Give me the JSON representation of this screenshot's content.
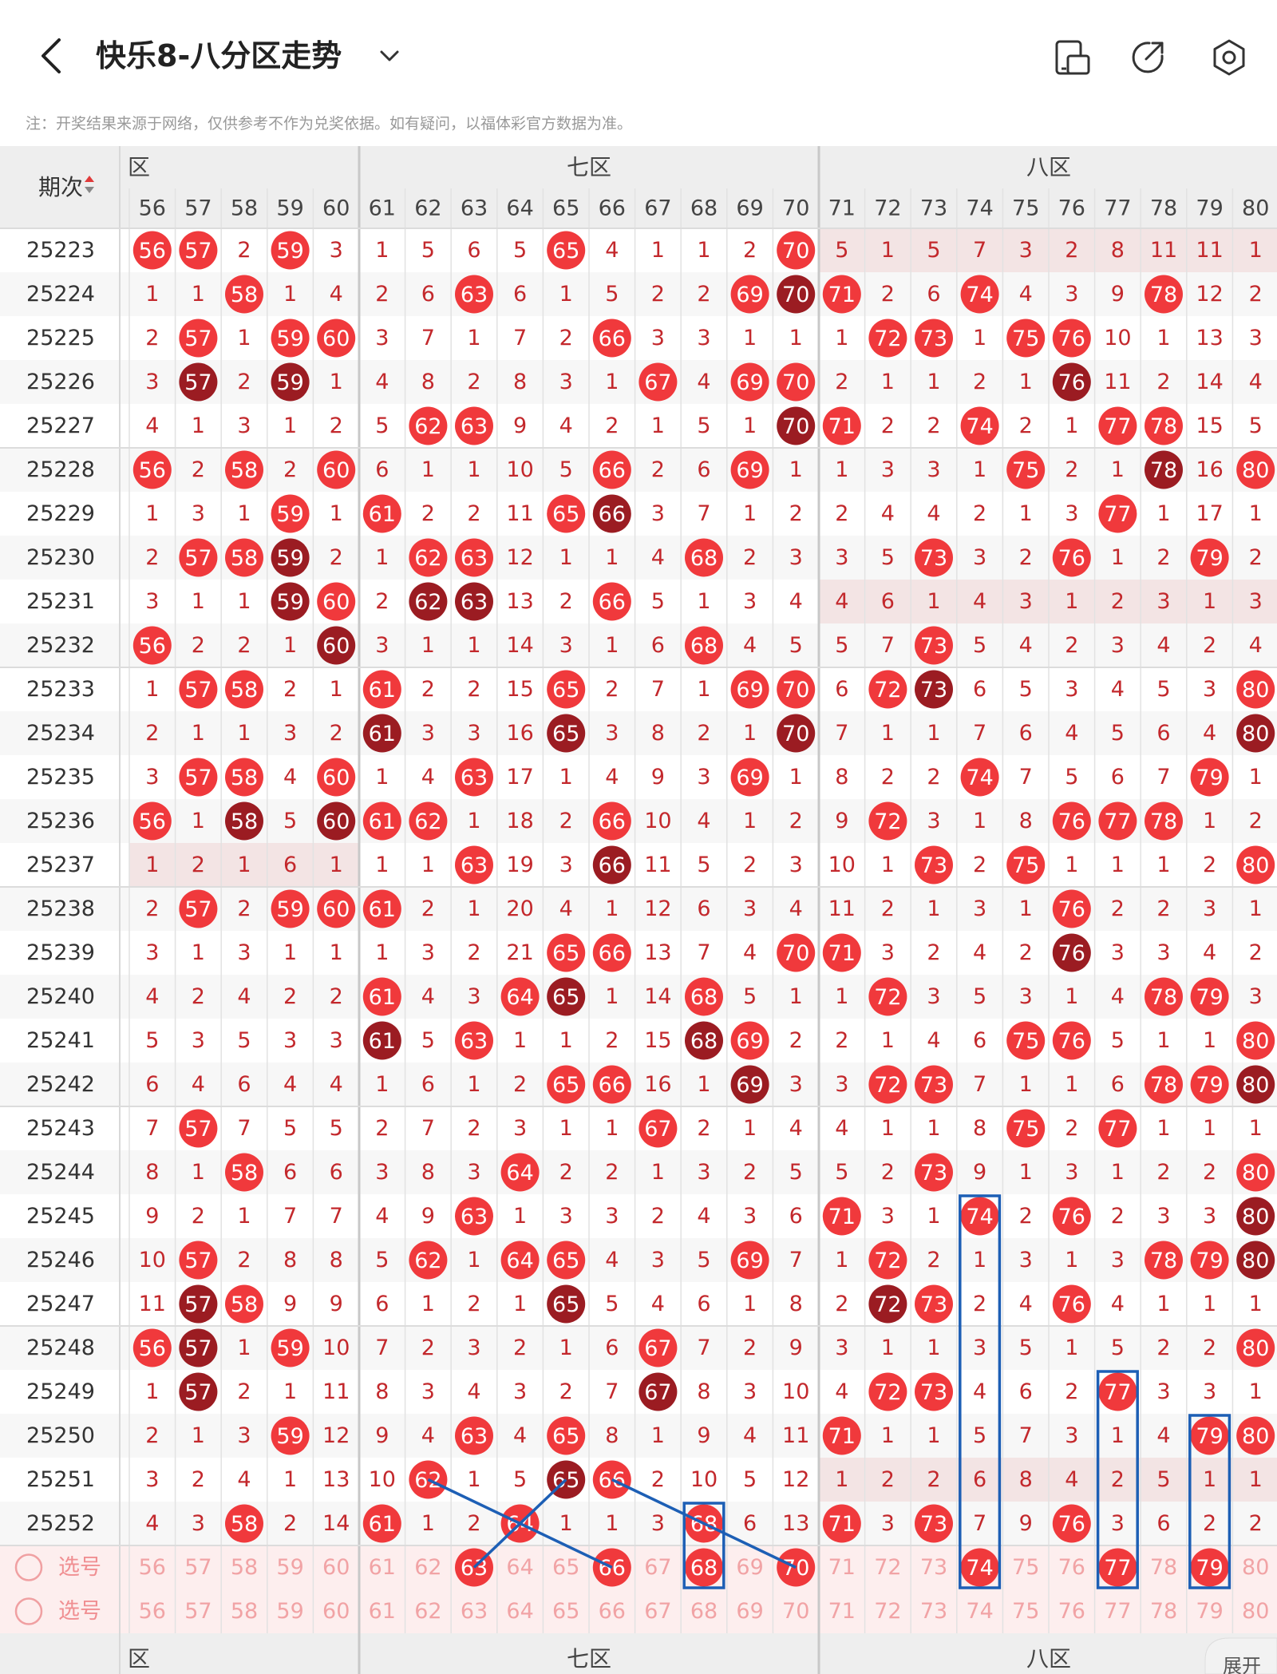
{
  "header": {
    "title": "快乐8-八分区走势",
    "back_icon": "back-arrow-icon",
    "dropdown_icon": "chevron-down-icon",
    "actions": [
      {
        "name": "layout-switch-icon"
      },
      {
        "name": "share-icon"
      },
      {
        "name": "settings-gear-icon"
      }
    ]
  },
  "notice": "注：开奖结果来源于网络，仅供参考不作为兑奖依据。如有疑问，以福体彩官方数据为准。",
  "table": {
    "issue_header": "期次",
    "zones": [
      {
        "label": "六区",
        "visible_label": "区"
      },
      {
        "label": "七区"
      },
      {
        "label": "八区"
      }
    ],
    "columns": [
      56,
      57,
      58,
      59,
      60,
      61,
      62,
      63,
      64,
      65,
      66,
      67,
      68,
      69,
      70,
      71,
      72,
      73,
      74,
      75,
      76,
      77,
      78,
      79,
      80
    ],
    "rows": [
      {
        "issue": "25223",
        "v": [
          "56",
          "57",
          2,
          "59",
          3,
          1,
          5,
          6,
          5,
          "65",
          4,
          1,
          1,
          2,
          "70",
          5,
          1,
          5,
          7,
          3,
          2,
          8,
          11,
          11,
          1
        ]
      },
      {
        "issue": "25224",
        "v": [
          1,
          1,
          "58",
          1,
          4,
          2,
          6,
          "63",
          6,
          1,
          5,
          2,
          2,
          "69",
          "70",
          "71",
          2,
          6,
          "74",
          4,
          3,
          9,
          "78",
          12,
          2
        ]
      },
      {
        "issue": "25225",
        "v": [
          2,
          "57",
          1,
          "59",
          "60",
          3,
          7,
          1,
          7,
          2,
          "66",
          3,
          3,
          1,
          1,
          1,
          "72",
          "73",
          1,
          "75",
          "76",
          10,
          1,
          13,
          3
        ]
      },
      {
        "issue": "25226",
        "v": [
          3,
          "57",
          2,
          "59",
          1,
          4,
          8,
          2,
          8,
          3,
          1,
          "67",
          4,
          "69",
          "70",
          2,
          1,
          1,
          2,
          1,
          "76",
          11,
          2,
          14,
          4
        ]
      },
      {
        "issue": "25227",
        "v": [
          4,
          1,
          3,
          1,
          2,
          5,
          "62",
          "63",
          9,
          4,
          2,
          1,
          5,
          1,
          "70",
          "71",
          2,
          2,
          "74",
          2,
          1,
          "77",
          "78",
          15,
          5
        ]
      },
      {
        "issue": "25228",
        "v": [
          "56",
          2,
          "58",
          2,
          "60",
          6,
          1,
          1,
          10,
          5,
          "66",
          2,
          6,
          "69",
          1,
          1,
          3,
          3,
          1,
          "75",
          2,
          1,
          "78",
          16,
          "80"
        ]
      },
      {
        "issue": "25229",
        "v": [
          1,
          3,
          1,
          "59",
          1,
          "61",
          2,
          2,
          11,
          "65",
          "66",
          3,
          7,
          1,
          2,
          2,
          4,
          4,
          2,
          1,
          3,
          "77",
          1,
          17,
          1
        ]
      },
      {
        "issue": "25230",
        "v": [
          2,
          "57",
          "58",
          "59",
          2,
          1,
          "62",
          "63",
          12,
          1,
          1,
          4,
          "68",
          2,
          3,
          3,
          5,
          "73",
          3,
          2,
          "76",
          1,
          2,
          "79",
          2
        ]
      },
      {
        "issue": "25231",
        "v": [
          3,
          1,
          1,
          "59",
          "60",
          2,
          "62",
          "63",
          13,
          2,
          "66",
          5,
          1,
          3,
          4,
          4,
          6,
          1,
          4,
          3,
          1,
          2,
          3,
          1,
          3
        ]
      },
      {
        "issue": "25232",
        "v": [
          "56",
          2,
          2,
          1,
          "60",
          3,
          1,
          1,
          14,
          3,
          1,
          6,
          "68",
          4,
          5,
          5,
          7,
          "73",
          5,
          4,
          2,
          3,
          4,
          2,
          4
        ]
      },
      {
        "issue": "25233",
        "v": [
          1,
          "57",
          "58",
          2,
          1,
          "61",
          2,
          2,
          15,
          "65",
          2,
          7,
          1,
          "69",
          "70",
          6,
          "72",
          "73",
          6,
          5,
          3,
          4,
          5,
          3,
          "80"
        ]
      },
      {
        "issue": "25234",
        "v": [
          2,
          1,
          1,
          3,
          2,
          "61",
          3,
          3,
          16,
          "65",
          3,
          8,
          2,
          1,
          "70",
          7,
          1,
          1,
          7,
          6,
          4,
          5,
          6,
          4,
          "80"
        ]
      },
      {
        "issue": "25235",
        "v": [
          3,
          "57",
          "58",
          4,
          "60",
          1,
          4,
          "63",
          17,
          1,
          4,
          9,
          3,
          "69",
          1,
          8,
          2,
          2,
          "74",
          7,
          5,
          6,
          7,
          "79",
          1
        ]
      },
      {
        "issue": "25236",
        "v": [
          "56",
          1,
          "58",
          5,
          "60",
          "61",
          "62",
          1,
          18,
          2,
          "66",
          10,
          4,
          1,
          2,
          9,
          "72",
          3,
          1,
          8,
          "76",
          "77",
          "78",
          1,
          2
        ]
      },
      {
        "issue": "25237",
        "v": [
          1,
          2,
          1,
          6,
          1,
          1,
          1,
          "63",
          19,
          3,
          "66",
          11,
          5,
          2,
          3,
          10,
          1,
          "73",
          2,
          "75",
          1,
          1,
          1,
          2,
          "80"
        ]
      },
      {
        "issue": "25238",
        "v": [
          2,
          "57",
          2,
          "59",
          "60",
          "61",
          2,
          1,
          20,
          4,
          1,
          12,
          6,
          3,
          4,
          11,
          2,
          1,
          3,
          1,
          "76",
          2,
          2,
          3,
          1
        ]
      },
      {
        "issue": "25239",
        "v": [
          3,
          1,
          3,
          1,
          1,
          1,
          3,
          2,
          21,
          "65",
          "66",
          13,
          7,
          4,
          "70",
          "71",
          3,
          2,
          4,
          2,
          "76",
          3,
          3,
          4,
          2
        ]
      },
      {
        "issue": "25240",
        "v": [
          4,
          2,
          4,
          2,
          2,
          "61",
          4,
          3,
          "64",
          "65",
          1,
          14,
          "68",
          5,
          1,
          1,
          "72",
          3,
          5,
          3,
          1,
          4,
          "78",
          "79",
          3
        ]
      },
      {
        "issue": "25241",
        "v": [
          5,
          3,
          5,
          3,
          3,
          "61",
          5,
          "63",
          1,
          1,
          2,
          15,
          "68",
          "69",
          2,
          2,
          1,
          4,
          6,
          "75",
          "76",
          5,
          1,
          1,
          "80"
        ]
      },
      {
        "issue": "25242",
        "v": [
          6,
          4,
          6,
          4,
          4,
          1,
          6,
          1,
          2,
          "65",
          "66",
          16,
          1,
          "69",
          3,
          3,
          "72",
          "73",
          7,
          1,
          1,
          6,
          "78",
          "79",
          "80"
        ]
      },
      {
        "issue": "25243",
        "v": [
          7,
          "57",
          7,
          5,
          5,
          2,
          7,
          2,
          3,
          1,
          1,
          "67",
          2,
          1,
          4,
          4,
          1,
          1,
          8,
          "75",
          2,
          "77",
          1,
          1,
          1
        ]
      },
      {
        "issue": "25244",
        "v": [
          8,
          1,
          "58",
          6,
          6,
          3,
          8,
          3,
          "64",
          2,
          2,
          1,
          3,
          2,
          5,
          5,
          2,
          "73",
          9,
          1,
          3,
          1,
          2,
          2,
          "80"
        ]
      },
      {
        "issue": "25245",
        "v": [
          9,
          2,
          1,
          7,
          7,
          4,
          9,
          "63",
          1,
          3,
          3,
          2,
          4,
          3,
          6,
          "71",
          3,
          1,
          "74",
          2,
          "76",
          2,
          3,
          3,
          "80"
        ]
      },
      {
        "issue": "25246",
        "v": [
          10,
          "57",
          2,
          8,
          8,
          5,
          "62",
          1,
          "64",
          "65",
          4,
          3,
          5,
          "69",
          7,
          1,
          "72",
          2,
          1,
          3,
          1,
          3,
          "78",
          "79",
          "80"
        ]
      },
      {
        "issue": "25247",
        "v": [
          11,
          "57",
          "58",
          9,
          9,
          6,
          1,
          2,
          1,
          "65",
          5,
          4,
          6,
          1,
          8,
          2,
          "72",
          "73",
          2,
          4,
          "76",
          4,
          1,
          1,
          1
        ]
      },
      {
        "issue": "25248",
        "v": [
          "56",
          "57",
          1,
          "59",
          10,
          7,
          2,
          3,
          2,
          1,
          6,
          "67",
          7,
          2,
          9,
          3,
          1,
          1,
          3,
          5,
          1,
          5,
          2,
          2,
          "80"
        ]
      },
      {
        "issue": "25249",
        "v": [
          1,
          "57",
          2,
          1,
          11,
          8,
          3,
          4,
          3,
          2,
          7,
          "67",
          8,
          3,
          10,
          4,
          "72",
          "73",
          4,
          6,
          2,
          "77",
          3,
          3,
          1
        ]
      },
      {
        "issue": "25250",
        "v": [
          2,
          1,
          3,
          "59",
          12,
          9,
          4,
          "63",
          4,
          "65",
          8,
          1,
          9,
          4,
          11,
          "71",
          1,
          1,
          5,
          7,
          3,
          1,
          4,
          "79",
          "80"
        ]
      },
      {
        "issue": "25251",
        "v": [
          3,
          2,
          4,
          1,
          13,
          10,
          "62",
          1,
          5,
          "65",
          "66",
          2,
          10,
          5,
          12,
          1,
          2,
          2,
          6,
          8,
          4,
          2,
          5,
          1,
          1
        ]
      },
      {
        "issue": "25252",
        "v": [
          4,
          3,
          "58",
          2,
          14,
          "61",
          1,
          2,
          "64",
          1,
          1,
          3,
          "68",
          6,
          13,
          "71",
          3,
          "73",
          7,
          9,
          "76",
          3,
          6,
          2,
          2
        ]
      }
    ],
    "highlight_rows": [
      "25223",
      "25231",
      "25237",
      "25251"
    ],
    "pick_rows": [
      {
        "label": "选号",
        "selected": [
          "63",
          "66",
          "68",
          "70",
          "74",
          "77",
          "79"
        ]
      },
      {
        "label": "选号",
        "selected": []
      }
    ],
    "bottom_zones": [
      {
        "label": "六区",
        "visible_label": "区"
      },
      {
        "label": "七区"
      },
      {
        "label": "八区"
      }
    ],
    "expand_label": "展开"
  },
  "colors": {
    "ball": "#f0393c",
    "ball_repeat": "#9b1c22",
    "miss_text": "#c3282c",
    "header_bg": "#eeeeee",
    "highlight_row": "#f3e4e4",
    "pick_bg": "#fdeeee",
    "pick_text": "#f1a3a5",
    "annotation": "#1d5fb5"
  }
}
